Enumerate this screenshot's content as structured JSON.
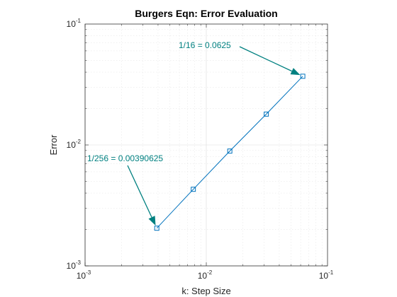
{
  "chart_data": {
    "type": "line",
    "title": "Burgers Eqn:  Error Evaluation",
    "xlabel": "k:  Step Size",
    "ylabel": "Error",
    "xscale": "log",
    "yscale": "log",
    "xlim": [
      0.001,
      0.1
    ],
    "ylim": [
      0.001,
      0.1
    ],
    "grid": true,
    "minor_grid": true,
    "xticks": [
      {
        "mantissa": "10",
        "exponent": "-3"
      },
      {
        "mantissa": "10",
        "exponent": "-2"
      },
      {
        "mantissa": "10",
        "exponent": "-1"
      }
    ],
    "yticks": [
      {
        "mantissa": "10",
        "exponent": "-3"
      },
      {
        "mantissa": "10",
        "exponent": "-2"
      },
      {
        "mantissa": "10",
        "exponent": "-1"
      }
    ],
    "series": [
      {
        "x": [
          0.00390625,
          0.0078125,
          0.015625,
          0.03125,
          0.0625
        ],
        "y": [
          0.00205,
          0.0043,
          0.0089,
          0.018,
          0.037
        ],
        "color": "#0072BD",
        "marker": "square"
      }
    ],
    "annotations": [
      {
        "text": "1/16 = 0.0625",
        "target_x": 0.0625,
        "target_y": 0.037
      },
      {
        "text": "1/256 = 0.00390625",
        "target_x": 0.00390625,
        "target_y": 0.00205
      }
    ],
    "annotation_color": "#008080"
  }
}
